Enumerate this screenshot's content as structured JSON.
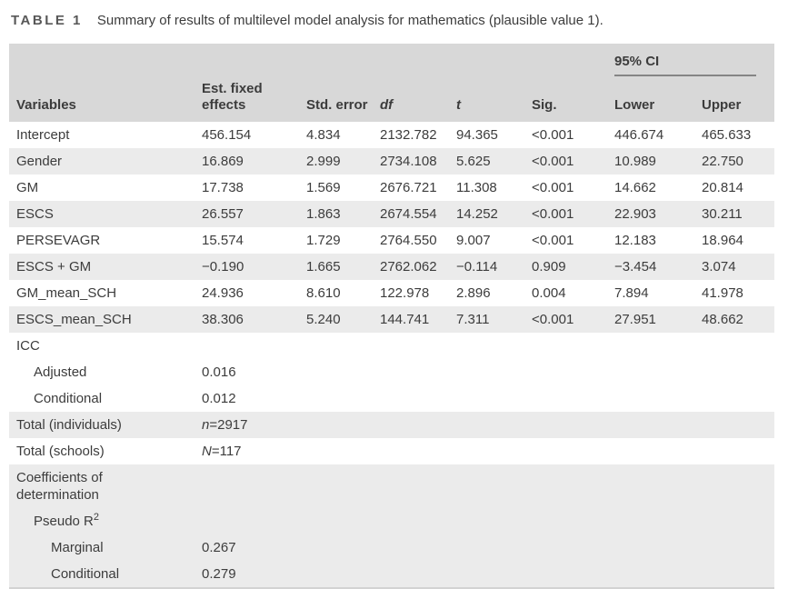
{
  "caption": {
    "label": "TABLE 1",
    "text": "Summary of results of multilevel model analysis for mathematics (plausible value 1)."
  },
  "table": {
    "ci_group_label": "95% CI",
    "columns": [
      "Variables",
      "Est. fixed effects",
      "Std. error",
      "df",
      "t",
      "Sig.",
      "Lower",
      "Upper"
    ],
    "rows": [
      {
        "label": "Intercept",
        "cells": [
          "456.154",
          "4.834",
          "2132.782",
          "94.365",
          "<0.001",
          "446.674",
          "465.633"
        ]
      },
      {
        "label": "Gender",
        "shade": true,
        "cells": [
          "16.869",
          "2.999",
          "2734.108",
          "5.625",
          "<0.001",
          "10.989",
          "22.750"
        ]
      },
      {
        "label": "GM",
        "cells": [
          "17.738",
          "1.569",
          "2676.721",
          "11.308",
          "<0.001",
          "14.662",
          "20.814"
        ]
      },
      {
        "label": "ESCS",
        "shade": true,
        "cells": [
          "26.557",
          "1.863",
          "2674.554",
          "14.252",
          "<0.001",
          "22.903",
          "30.211"
        ]
      },
      {
        "label": "PERSEVAGR",
        "cells": [
          "15.574",
          "1.729",
          "2764.550",
          "9.007",
          "<0.001",
          "12.183",
          "18.964"
        ]
      },
      {
        "label": "ESCS + GM",
        "shade": true,
        "cells": [
          "−0.190",
          "1.665",
          "2762.062",
          "−0.114",
          "0.909",
          "−3.454",
          "3.074"
        ]
      },
      {
        "label": "GM_mean_SCH",
        "cells": [
          "24.936",
          "8.610",
          "122.978",
          "2.896",
          "0.004",
          "7.894",
          "41.978"
        ]
      },
      {
        "label": "ESCS_mean_SCH",
        "shade": true,
        "cells": [
          "38.306",
          "5.240",
          "144.741",
          "7.311",
          "<0.001",
          "27.951",
          "48.662"
        ]
      },
      {
        "label": "ICC",
        "cells": []
      },
      {
        "label": "Adjusted",
        "indent": 1,
        "cells": [
          "0.016"
        ]
      },
      {
        "label": "Conditional",
        "indent": 1,
        "cells": [
          "0.012"
        ]
      },
      {
        "label": "Total (individuals)",
        "shade": true,
        "cells": [
          {
            "i": "n",
            "t": "=2917"
          }
        ]
      },
      {
        "label": "Total (schools)",
        "cells": [
          {
            "i": "N",
            "t": "=117"
          }
        ]
      },
      {
        "label": "Coefficients of determination",
        "shade": true,
        "cells": []
      },
      {
        "label": "Pseudo R",
        "label_sup": "2",
        "indent": 1,
        "shade": true,
        "cells": []
      },
      {
        "label": "Marginal",
        "indent": 2,
        "shade": true,
        "cells": [
          "0.267"
        ]
      },
      {
        "label": "Conditional",
        "indent": 2,
        "shade": true,
        "cells": [
          "0.279"
        ]
      }
    ]
  }
}
